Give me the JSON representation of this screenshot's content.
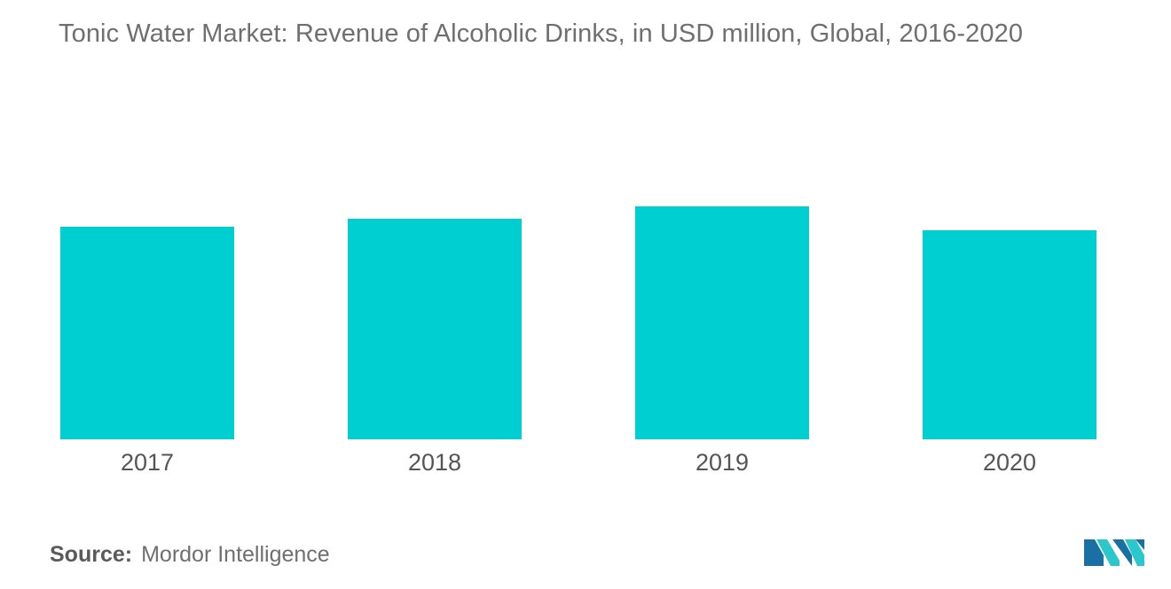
{
  "chart_data": {
    "type": "bar",
    "title": "Tonic Water Market: Revenue of Alcoholic Drinks, in USD million, Global,  2016-2020",
    "categories": [
      "2017",
      "2018",
      "2019",
      "2020"
    ],
    "values": [
      240,
      249,
      263,
      236
    ],
    "ylim": [
      0,
      300
    ],
    "bar_color": "#00cfd1",
    "grid": false,
    "legend": "none"
  },
  "source": {
    "label": "Source:",
    "text": "Mordor Intelligence"
  },
  "logo": {
    "icon": "mordor-intelligence-logo-icon",
    "colors": [
      "#1a6fa3",
      "#2bc7cc"
    ]
  }
}
